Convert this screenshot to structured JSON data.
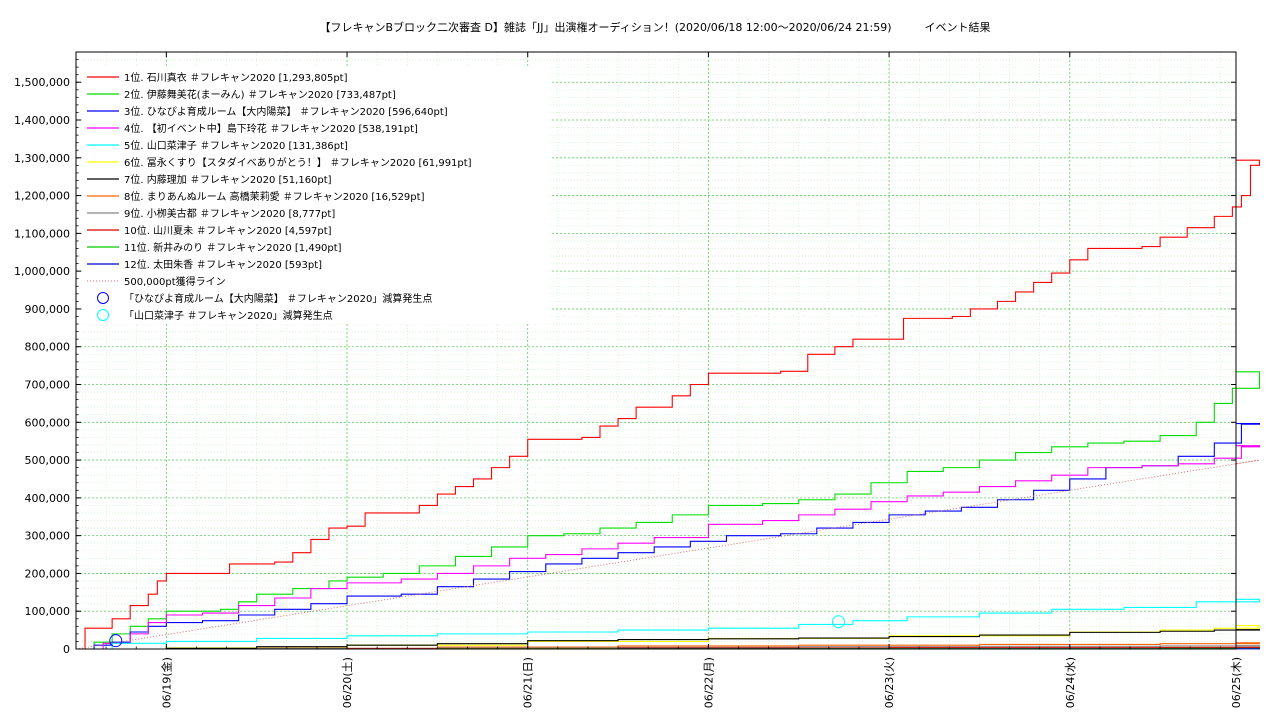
{
  "chart_data": {
    "type": "line",
    "title": "【フレキャンBブロック二次審査 D】雑誌「JJ」出演権オーディション！(2020/06/18 12:00〜2020/06/24 21:59)　　　イベント結果",
    "xlabel": "",
    "ylabel": "",
    "ylim": [
      0,
      1580000
    ],
    "xlim": [
      0,
      6.42
    ],
    "grid": true,
    "legend_position": "top-left",
    "y_ticks": [
      {
        "v": 0,
        "label": "0"
      },
      {
        "v": 100000,
        "label": "100,000"
      },
      {
        "v": 200000,
        "label": "200,000"
      },
      {
        "v": 300000,
        "label": "300,000"
      },
      {
        "v": 400000,
        "label": "400,000"
      },
      {
        "v": 500000,
        "label": "500,000"
      },
      {
        "v": 600000,
        "label": "600,000"
      },
      {
        "v": 700000,
        "label": "700,000"
      },
      {
        "v": 800000,
        "label": "800,000"
      },
      {
        "v": 900000,
        "label": "900,000"
      },
      {
        "v": 1000000,
        "label": "1,000,000"
      },
      {
        "v": 1100000,
        "label": "1,100,000"
      },
      {
        "v": 1200000,
        "label": "1,200,000"
      },
      {
        "v": 1300000,
        "label": "1,300,000"
      },
      {
        "v": 1400000,
        "label": "1,400,000"
      },
      {
        "v": 1500000,
        "label": "1,500,000"
      }
    ],
    "x_ticks": [
      {
        "v": 0.5,
        "label": "06/19(金)"
      },
      {
        "v": 1.5,
        "label": "06/20(土)"
      },
      {
        "v": 2.5,
        "label": "06/21(日)"
      },
      {
        "v": 3.5,
        "label": "06/22(月)"
      },
      {
        "v": 4.5,
        "label": "06/23(火)"
      },
      {
        "v": 5.5,
        "label": "06/24(水)"
      },
      {
        "v": 6.42,
        "label": "06/25(木)"
      }
    ],
    "series": [
      {
        "name": "1位. 石川真衣 ＃フレキャン2020 [1,293,805pt]",
        "color": "#ff0000",
        "style": "step",
        "points": [
          [
            0,
            0
          ],
          [
            0.05,
            55000
          ],
          [
            0.2,
            80000
          ],
          [
            0.3,
            115000
          ],
          [
            0.4,
            145000
          ],
          [
            0.45,
            180000
          ],
          [
            0.5,
            200000
          ],
          [
            0.7,
            200000
          ],
          [
            0.85,
            225000
          ],
          [
            1.1,
            230000
          ],
          [
            1.2,
            255000
          ],
          [
            1.3,
            290000
          ],
          [
            1.4,
            320000
          ],
          [
            1.5,
            325000
          ],
          [
            1.6,
            360000
          ],
          [
            1.8,
            360000
          ],
          [
            1.9,
            380000
          ],
          [
            2.0,
            410000
          ],
          [
            2.1,
            430000
          ],
          [
            2.2,
            450000
          ],
          [
            2.3,
            480000
          ],
          [
            2.4,
            510000
          ],
          [
            2.5,
            555000
          ],
          [
            2.8,
            560000
          ],
          [
            2.9,
            590000
          ],
          [
            3.0,
            610000
          ],
          [
            3.1,
            640000
          ],
          [
            3.3,
            670000
          ],
          [
            3.4,
            700000
          ],
          [
            3.5,
            730000
          ],
          [
            3.9,
            735000
          ],
          [
            4.05,
            780000
          ],
          [
            4.2,
            800000
          ],
          [
            4.3,
            820000
          ],
          [
            4.5,
            820000
          ],
          [
            4.58,
            875000
          ],
          [
            4.85,
            880000
          ],
          [
            4.95,
            900000
          ],
          [
            5.1,
            920000
          ],
          [
            5.2,
            945000
          ],
          [
            5.3,
            970000
          ],
          [
            5.4,
            995000
          ],
          [
            5.5,
            1030000
          ],
          [
            5.6,
            1060000
          ],
          [
            5.9,
            1065000
          ],
          [
            6.0,
            1090000
          ],
          [
            6.15,
            1115000
          ],
          [
            6.3,
            1145000
          ],
          [
            6.4,
            1170000
          ],
          [
            6.45,
            1200000
          ],
          [
            6.5,
            1280000
          ],
          [
            6.55,
            1293805
          ]
        ]
      },
      {
        "name": "2位. 伊藤舞美花(まーみん) ＃フレキャン2020 [733,487pt]",
        "color": "#00dd00",
        "style": "step",
        "points": [
          [
            0,
            0
          ],
          [
            0.1,
            18000
          ],
          [
            0.2,
            40000
          ],
          [
            0.3,
            60000
          ],
          [
            0.4,
            80000
          ],
          [
            0.5,
            100000
          ],
          [
            0.8,
            105000
          ],
          [
            0.9,
            125000
          ],
          [
            1.0,
            145000
          ],
          [
            1.2,
            160000
          ],
          [
            1.4,
            180000
          ],
          [
            1.5,
            190000
          ],
          [
            1.7,
            200000
          ],
          [
            1.9,
            220000
          ],
          [
            2.1,
            245000
          ],
          [
            2.3,
            270000
          ],
          [
            2.5,
            300000
          ],
          [
            2.7,
            305000
          ],
          [
            2.9,
            320000
          ],
          [
            3.1,
            335000
          ],
          [
            3.3,
            355000
          ],
          [
            3.5,
            380000
          ],
          [
            3.8,
            385000
          ],
          [
            4.0,
            395000
          ],
          [
            4.2,
            410000
          ],
          [
            4.4,
            440000
          ],
          [
            4.6,
            470000
          ],
          [
            4.8,
            480000
          ],
          [
            5.0,
            500000
          ],
          [
            5.2,
            520000
          ],
          [
            5.4,
            535000
          ],
          [
            5.6,
            545000
          ],
          [
            5.8,
            550000
          ],
          [
            6.0,
            565000
          ],
          [
            6.2,
            600000
          ],
          [
            6.3,
            650000
          ],
          [
            6.4,
            690000
          ],
          [
            6.55,
            733487
          ]
        ]
      },
      {
        "name": "3位. ひなぴよ育成ルーム【大内陽菜】 ＃フレキャン2020 [596,640pt]",
        "color": "#0000ff",
        "style": "step",
        "points": [
          [
            0,
            0
          ],
          [
            0.1,
            10000
          ],
          [
            0.2,
            18000
          ],
          [
            0.3,
            45000
          ],
          [
            0.4,
            60000
          ],
          [
            0.5,
            70000
          ],
          [
            0.7,
            75000
          ],
          [
            0.9,
            90000
          ],
          [
            1.1,
            105000
          ],
          [
            1.3,
            120000
          ],
          [
            1.5,
            140000
          ],
          [
            1.8,
            145000
          ],
          [
            2.0,
            165000
          ],
          [
            2.2,
            185000
          ],
          [
            2.4,
            205000
          ],
          [
            2.6,
            225000
          ],
          [
            2.8,
            240000
          ],
          [
            3.0,
            255000
          ],
          [
            3.2,
            270000
          ],
          [
            3.4,
            285000
          ],
          [
            3.6,
            300000
          ],
          [
            3.9,
            305000
          ],
          [
            4.1,
            320000
          ],
          [
            4.3,
            335000
          ],
          [
            4.5,
            355000
          ],
          [
            4.7,
            365000
          ],
          [
            4.9,
            375000
          ],
          [
            5.1,
            395000
          ],
          [
            5.3,
            420000
          ],
          [
            5.5,
            450000
          ],
          [
            5.7,
            480000
          ],
          [
            5.9,
            485000
          ],
          [
            6.1,
            510000
          ],
          [
            6.3,
            545000
          ],
          [
            6.45,
            595000
          ],
          [
            6.55,
            596640
          ]
        ]
      },
      {
        "name": "4位. 【初イベント中】島下玲花 ＃フレキャン2020 [538,191pt]",
        "color": "#ff00ff",
        "style": "step",
        "points": [
          [
            0,
            0
          ],
          [
            0.15,
            15000
          ],
          [
            0.3,
            40000
          ],
          [
            0.4,
            70000
          ],
          [
            0.5,
            90000
          ],
          [
            0.7,
            95000
          ],
          [
            0.9,
            115000
          ],
          [
            1.1,
            135000
          ],
          [
            1.3,
            160000
          ],
          [
            1.5,
            175000
          ],
          [
            1.8,
            185000
          ],
          [
            2.0,
            200000
          ],
          [
            2.2,
            220000
          ],
          [
            2.4,
            240000
          ],
          [
            2.6,
            250000
          ],
          [
            2.8,
            265000
          ],
          [
            3.0,
            280000
          ],
          [
            3.2,
            295000
          ],
          [
            3.5,
            330000
          ],
          [
            3.8,
            340000
          ],
          [
            4.0,
            355000
          ],
          [
            4.2,
            370000
          ],
          [
            4.4,
            390000
          ],
          [
            4.6,
            405000
          ],
          [
            4.8,
            415000
          ],
          [
            5.0,
            430000
          ],
          [
            5.2,
            445000
          ],
          [
            5.4,
            460000
          ],
          [
            5.6,
            480000
          ],
          [
            5.9,
            485000
          ],
          [
            6.1,
            490000
          ],
          [
            6.3,
            505000
          ],
          [
            6.45,
            535000
          ],
          [
            6.55,
            538191
          ]
        ]
      },
      {
        "name": "5位. 山口菜津子 ＃フレキャン2020 [131,386pt]",
        "color": "#00ffff",
        "style": "step",
        "points": [
          [
            0,
            0
          ],
          [
            0.2,
            15000
          ],
          [
            0.5,
            20000
          ],
          [
            1.0,
            28000
          ],
          [
            1.5,
            35000
          ],
          [
            2.0,
            40000
          ],
          [
            2.5,
            45000
          ],
          [
            3.0,
            50000
          ],
          [
            3.5,
            55000
          ],
          [
            4.0,
            65000
          ],
          [
            4.3,
            75000
          ],
          [
            4.6,
            85000
          ],
          [
            5.0,
            95000
          ],
          [
            5.4,
            105000
          ],
          [
            5.8,
            110000
          ],
          [
            6.2,
            125000
          ],
          [
            6.55,
            131386
          ]
        ]
      },
      {
        "name": "6位. 冨永くすり【スタダイベありがとう！】 ＃フレキャン2020 [61,991pt]",
        "color": "#ffff00",
        "style": "step",
        "points": [
          [
            0,
            0
          ],
          [
            0.5,
            3000
          ],
          [
            1.5,
            10000
          ],
          [
            2.5,
            20000
          ],
          [
            3.5,
            28000
          ],
          [
            4.5,
            35000
          ],
          [
            5.5,
            45000
          ],
          [
            6.0,
            50000
          ],
          [
            6.3,
            55000
          ],
          [
            6.55,
            61991
          ]
        ]
      },
      {
        "name": "7位. 内藤理加 ＃フレキャン2020 [51,160pt]",
        "color": "#000000",
        "style": "step",
        "points": [
          [
            0,
            0
          ],
          [
            0.5,
            2000
          ],
          [
            1.0,
            6000
          ],
          [
            1.5,
            10000
          ],
          [
            2.0,
            14000
          ],
          [
            2.5,
            22000
          ],
          [
            3.0,
            25000
          ],
          [
            3.5,
            27000
          ],
          [
            4.0,
            29000
          ],
          [
            4.5,
            33000
          ],
          [
            5.0,
            37000
          ],
          [
            5.5,
            44000
          ],
          [
            6.0,
            47000
          ],
          [
            6.3,
            50000
          ],
          [
            6.55,
            51160
          ]
        ]
      },
      {
        "name": "8位. まりあんぬルーム 高橋茉莉愛 ＃フレキャン2020 [16,529pt]",
        "color": "#ff6600",
        "style": "step",
        "points": [
          [
            0,
            0
          ],
          [
            1.0,
            2000
          ],
          [
            2.0,
            5000
          ],
          [
            3.0,
            8000
          ],
          [
            4.0,
            10000
          ],
          [
            5.0,
            12000
          ],
          [
            6.0,
            14000
          ],
          [
            6.55,
            16529
          ]
        ]
      },
      {
        "name": "9位. 小栁美古都 ＃フレキャン2020 [8,777pt]",
        "color": "#888888",
        "style": "step",
        "points": [
          [
            0,
            0
          ],
          [
            1.0,
            1500
          ],
          [
            2.0,
            3000
          ],
          [
            3.0,
            4500
          ],
          [
            4.0,
            6000
          ],
          [
            5.0,
            7000
          ],
          [
            6.0,
            8000
          ],
          [
            6.55,
            8777
          ]
        ]
      },
      {
        "name": "10位. 山川夏未 ＃フレキャン2020 [4,597pt]",
        "color": "#dd0000",
        "style": "step",
        "points": [
          [
            0,
            0
          ],
          [
            1.5,
            1000
          ],
          [
            3.0,
            2500
          ],
          [
            4.5,
            3500
          ],
          [
            6.0,
            4200
          ],
          [
            6.55,
            4597
          ]
        ]
      },
      {
        "name": "11位. 新井みのり ＃フレキャン2020 [1,490pt]",
        "color": "#00cc00",
        "style": "step",
        "points": [
          [
            0,
            0
          ],
          [
            2.0,
            500
          ],
          [
            4.0,
            1000
          ],
          [
            6.0,
            1400
          ],
          [
            6.55,
            1490
          ]
        ]
      },
      {
        "name": "12位. 太田朱香 ＃フレキャン2020 [593pt]",
        "color": "#0000cc",
        "style": "step",
        "points": [
          [
            0,
            0
          ],
          [
            3.0,
            300
          ],
          [
            6.55,
            593
          ]
        ]
      },
      {
        "name": "500,000pt獲得ライン",
        "color": "#cc6666",
        "style": "dotted",
        "points": [
          [
            0,
            0
          ],
          [
            6.55,
            500000
          ]
        ]
      }
    ],
    "markers": [
      {
        "name": "「ひなぴよ育成ルーム【大内陽菜】 ＃フレキャン2020」減算発生点",
        "color": "#0000ff",
        "x": 0.22,
        "y": 22000
      },
      {
        "name": "「山口菜津子 ＃フレキャン2020」減算発生点",
        "color": "#00ffff",
        "x": 4.22,
        "y": 72000
      }
    ]
  }
}
